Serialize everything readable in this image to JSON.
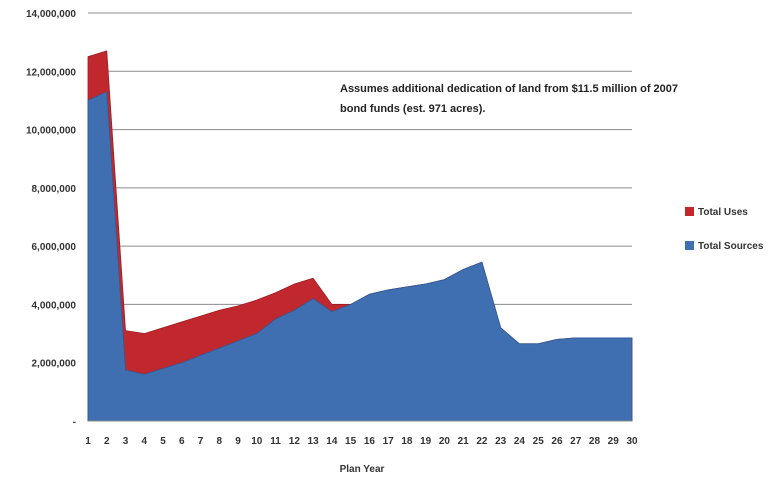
{
  "chart_data": {
    "type": "area",
    "title": "",
    "xlabel": "Plan Year",
    "ylabel": "",
    "x": [
      1,
      2,
      3,
      4,
      5,
      6,
      7,
      8,
      9,
      10,
      11,
      12,
      13,
      14,
      15,
      16,
      17,
      18,
      19,
      20,
      21,
      22,
      23,
      24,
      25,
      26,
      27,
      28,
      29,
      30
    ],
    "ylim": [
      0,
      14000000
    ],
    "y_ticks": [
      {
        "value": 0,
        "label": "-"
      },
      {
        "value": 2000000,
        "label": "2,000,000"
      },
      {
        "value": 4000000,
        "label": "4,000,000"
      },
      {
        "value": 6000000,
        "label": "6,000,000"
      },
      {
        "value": 8000000,
        "label": "8,000,000"
      },
      {
        "value": 10000000,
        "label": "10,000,000"
      },
      {
        "value": 12000000,
        "label": "12,000,000"
      },
      {
        "value": 14000000,
        "label": "14,000,000"
      }
    ],
    "grid": true,
    "legend_position": "right",
    "series": [
      {
        "name": "Total Uses",
        "color": "#c0282d",
        "values": [
          12500000,
          12700000,
          3100000,
          3000000,
          3200000,
          3400000,
          3600000,
          3800000,
          3950000,
          4150000,
          4400000,
          4700000,
          4900000,
          4000000,
          4000000,
          4350000,
          4500000,
          4600000,
          4700000,
          4850000,
          5200000,
          5450000,
          3200000,
          2650000,
          2650000,
          2800000,
          2850000,
          2850000,
          2850000,
          2850000
        ]
      },
      {
        "name": "Total Sources",
        "color": "#3f6fb0",
        "values": [
          11000000,
          11300000,
          1750000,
          1600000,
          1800000,
          2000000,
          2250000,
          2500000,
          2750000,
          3000000,
          3500000,
          3800000,
          4200000,
          3750000,
          4000000,
          4350000,
          4500000,
          4600000,
          4700000,
          4850000,
          5200000,
          5450000,
          3200000,
          2650000,
          2650000,
          2800000,
          2850000,
          2850000,
          2850000,
          2850000
        ]
      }
    ],
    "annotation": [
      "Assumes additional dedication of land from  $11.5 million of 2007",
      "bond funds (est. 971 acres)."
    ]
  }
}
